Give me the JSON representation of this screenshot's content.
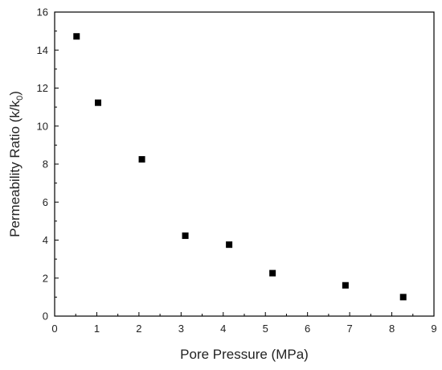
{
  "chart_data": {
    "type": "scatter",
    "xlabel": "Pore Pressure (MPa)",
    "ylabel": {
      "text": "Permeability Ratio (k/k",
      "subscript": "0",
      "suffix": ")"
    },
    "xlim": [
      0,
      9
    ],
    "ylim": [
      0,
      16
    ],
    "x_ticks": [
      "0",
      "1",
      "2",
      "3",
      "4",
      "5",
      "6",
      "7",
      "8",
      "9"
    ],
    "y_ticks": [
      "0",
      "2",
      "4",
      "6",
      "8",
      "10",
      "12",
      "14",
      "16"
    ],
    "grid": false,
    "marker": "square",
    "marker_color": "#000000",
    "points": [
      {
        "x": 0.52,
        "y": 14.72
      },
      {
        "x": 1.03,
        "y": 11.23
      },
      {
        "x": 2.07,
        "y": 8.25
      },
      {
        "x": 3.1,
        "y": 4.23
      },
      {
        "x": 4.14,
        "y": 3.76
      },
      {
        "x": 5.17,
        "y": 2.26
      },
      {
        "x": 6.9,
        "y": 1.62
      },
      {
        "x": 8.27,
        "y": 1.0
      }
    ]
  }
}
